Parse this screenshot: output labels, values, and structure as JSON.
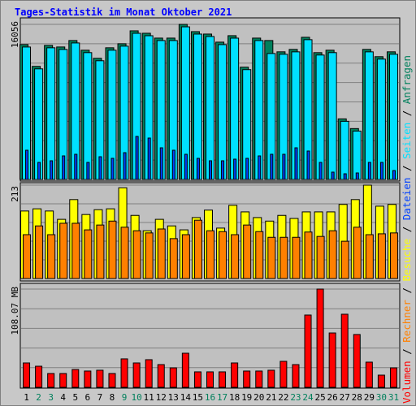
{
  "title": "Tages-Statistik im Monat Oktober 2021",
  "legend_separator": " / ",
  "chart_data": [
    {
      "type": "bar",
      "categories": [
        "1",
        "2",
        "3",
        "4",
        "5",
        "6",
        "7",
        "8",
        "9",
        "10",
        "11",
        "12",
        "13",
        "14",
        "15",
        "16",
        "17",
        "18",
        "19",
        "20",
        "21",
        "22",
        "23",
        "24",
        "25",
        "26",
        "27",
        "28",
        "29",
        "30",
        "31"
      ],
      "category_colors": [
        "#000000",
        "#00805c",
        "#00805c",
        "#000000",
        "#000000",
        "#000000",
        "#000000",
        "#000000",
        "#00805c",
        "#00805c",
        "#000000",
        "#000000",
        "#000000",
        "#000000",
        "#000000",
        "#00805c",
        "#00805c",
        "#000000",
        "#000000",
        "#000000",
        "#000000",
        "#000000",
        "#00805c",
        "#00805c",
        "#000000",
        "#000000",
        "#000000",
        "#000000",
        "#000000",
        "#00805c",
        "#00805c"
      ],
      "series": [
        {
          "name": "Anfragen",
          "color": "#00805c",
          "values": [
            13965,
            11707,
            13881,
            13714,
            14383,
            13380,
            12543,
            13631,
            14049,
            15387,
            15136,
            14634,
            14634,
            16056,
            15303,
            15052,
            14216,
            14885,
            11624,
            14634,
            14383,
            13213,
            13464,
            14718,
            13129,
            13380,
            6272,
            5268,
            13464,
            12711,
            13213
          ]
        },
        {
          "name": "Seiten",
          "color": "#00e0ff",
          "values": [
            13710,
            11450,
            13630,
            13460,
            14130,
            13130,
            12290,
            13380,
            13800,
            15130,
            14880,
            14380,
            14380,
            15800,
            15050,
            14800,
            13960,
            14630,
            11370,
            14380,
            13040,
            12960,
            13210,
            14470,
            12880,
            13130,
            6020,
            5010,
            13210,
            12460,
            12960
          ]
        },
        {
          "name": "Dateien",
          "color": "#0040ff",
          "values": [
            3026,
            1765,
            1933,
            2438,
            2606,
            1765,
            2354,
            2186,
            2774,
            4455,
            4287,
            3278,
            3026,
            2606,
            2186,
            1933,
            1933,
            2102,
            2186,
            2438,
            2606,
            2606,
            3278,
            2942,
            1765,
            757,
            588,
            673,
            1765,
            1765,
            925
          ]
        }
      ],
      "ylim": [
        0,
        16056
      ],
      "yticks": [
        16056
      ]
    },
    {
      "type": "bar",
      "categories": [
        "1",
        "2",
        "3",
        "4",
        "5",
        "6",
        "7",
        "8",
        "9",
        "10",
        "11",
        "12",
        "13",
        "14",
        "15",
        "16",
        "17",
        "18",
        "19",
        "20",
        "21",
        "22",
        "23",
        "24",
        "25",
        "26",
        "27",
        "28",
        "29",
        "30",
        "31"
      ],
      "series": [
        {
          "name": "Besuche",
          "color": "#ffff00",
          "values": [
            154,
            159,
            154,
            135,
            180,
            146,
            157,
            159,
            207,
            144,
            109,
            135,
            120,
            111,
            139,
            156,
            115,
            167,
            152,
            139,
            131,
            144,
            137,
            152,
            152,
            152,
            169,
            180,
            213,
            165,
            169
          ]
        },
        {
          "name": "Rechner",
          "color": "#ff8000",
          "values": [
            100,
            120,
            100,
            126,
            126,
            111,
            122,
            131,
            117,
            109,
            104,
            113,
            91,
            100,
            133,
            109,
            107,
            100,
            122,
            107,
            94,
            94,
            94,
            106,
            96,
            109,
            85,
            117,
            100,
            102,
            104
          ]
        }
      ],
      "ylim": [
        0,
        213
      ],
      "yticks": [
        213
      ]
    },
    {
      "type": "bar",
      "categories": [
        "1",
        "2",
        "3",
        "4",
        "5",
        "6",
        "7",
        "8",
        "9",
        "10",
        "11",
        "12",
        "13",
        "14",
        "15",
        "16",
        "17",
        "18",
        "19",
        "20",
        "21",
        "22",
        "23",
        "24",
        "25",
        "26",
        "27",
        "28",
        "29",
        "30",
        "31"
      ],
      "series": [
        {
          "name": "Volumen",
          "color": "#ff0000",
          "values": [
            26.8,
            23.2,
            15.2,
            15.2,
            19.6,
            17.9,
            18.8,
            15.2,
            31.3,
            26.8,
            30.4,
            25.0,
            21.4,
            37.5,
            17.0,
            17.0,
            17.0,
            26.8,
            17.9,
            17.9,
            18.8,
            28.6,
            25.0,
            79.5,
            108.07,
            59.8,
            80.4,
            58.1,
            27.7,
            13.4,
            21.4
          ]
        }
      ],
      "ylim": [
        0,
        108.07
      ],
      "yticks": [
        {
          "value": 108.07,
          "label": "108.07 MB"
        }
      ]
    }
  ]
}
